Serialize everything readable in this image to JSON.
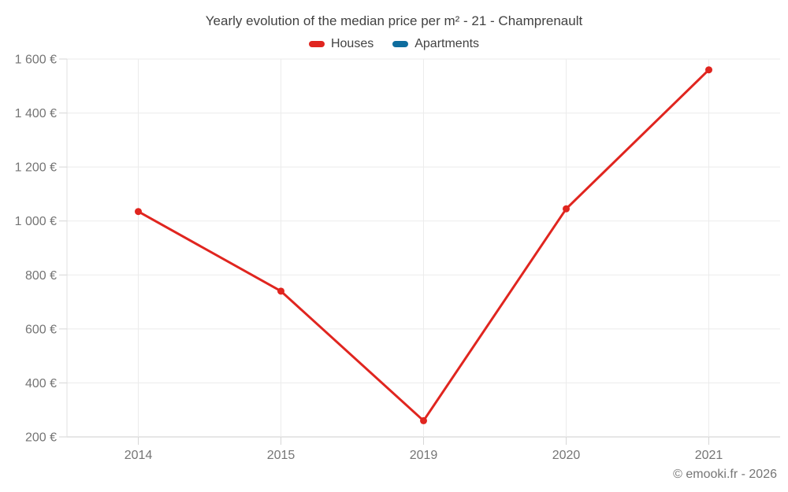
{
  "title": "Yearly evolution of the median price per m² - 21 - Champrenault",
  "legend": [
    {
      "label": "Houses",
      "color": "#e0251f"
    },
    {
      "label": "Apartments",
      "color": "#0f6d9e"
    }
  ],
  "footer": "© emooki.fr - 2026",
  "chart_data": {
    "type": "line",
    "title": "Yearly evolution of the median price per m² - 21 - Champrenault",
    "categories": [
      "2014",
      "2015",
      "2019",
      "2020",
      "2021"
    ],
    "series": [
      {
        "name": "Houses",
        "color": "#e0251f",
        "values": [
          1035,
          740,
          260,
          1045,
          1560
        ]
      },
      {
        "name": "Apartments",
        "color": "#0f6d9e",
        "values": [
          null,
          null,
          null,
          null,
          null
        ]
      }
    ],
    "xlabel": "",
    "ylabel": "",
    "ylim": [
      200,
      1600
    ],
    "y_ticks": [
      200,
      400,
      600,
      800,
      1000,
      1200,
      1400,
      1600
    ],
    "y_tick_labels": [
      "200 €",
      "400 €",
      "600 €",
      "800 €",
      "1 000 €",
      "1 200 €",
      "1 400 €",
      "1 600 €"
    ],
    "grid": true,
    "legend_position": "top"
  }
}
